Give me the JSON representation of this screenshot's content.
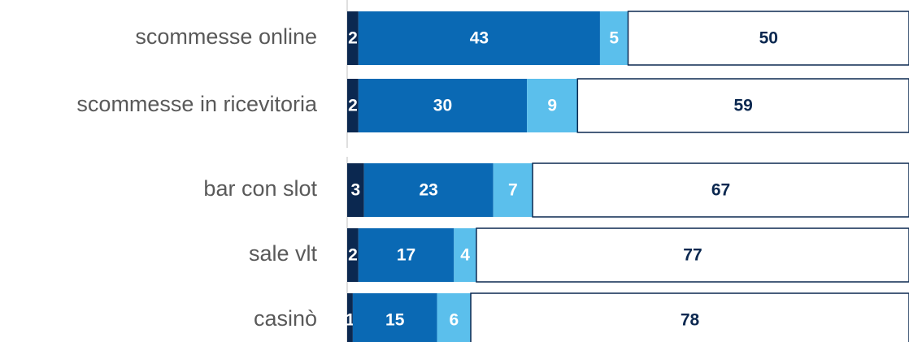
{
  "chart_data": {
    "type": "stacked-bar-horizontal",
    "categories": [
      "scommesse online",
      "scommesse in ricevitoria",
      "bar con slot",
      "sale vlt",
      "casinò"
    ],
    "series": [
      {
        "color": "#0b2850",
        "values": [
          2,
          2,
          3,
          2,
          1
        ]
      },
      {
        "color": "#0a69b4",
        "values": [
          43,
          30,
          23,
          17,
          15
        ]
      },
      {
        "color": "#5bbfec",
        "values": [
          5,
          9,
          7,
          4,
          6
        ]
      },
      {
        "color": "#ffffff",
        "values": [
          50,
          59,
          67,
          77,
          78
        ]
      }
    ],
    "xlim": [
      0,
      100
    ]
  }
}
